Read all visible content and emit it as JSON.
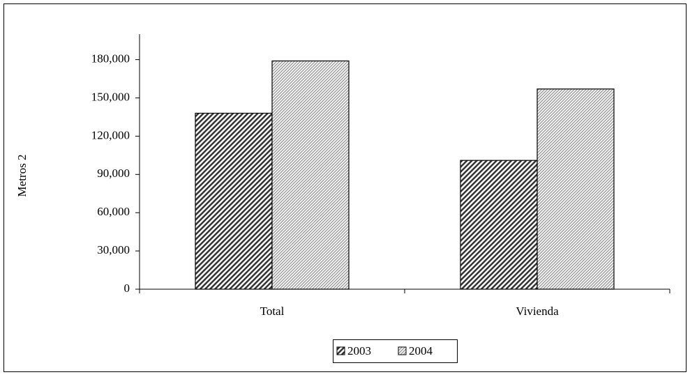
{
  "chart_data": {
    "type": "bar",
    "y_label": "Metros 2",
    "categories": [
      "Total",
      "Vivienda"
    ],
    "series": [
      {
        "name": "2003",
        "color": "#333333",
        "values": [
          138000,
          101000
        ]
      },
      {
        "name": "2004",
        "color": "#9a9a9a",
        "values": [
          179000,
          157000
        ]
      }
    ],
    "ylim": [
      0,
      200000
    ],
    "yticks": [
      0,
      {
        "value": 30000,
        "label": "30,000"
      },
      {
        "value": 60000,
        "label": "60,000"
      },
      {
        "value": 90000,
        "label": "90,000"
      },
      {
        "value": 120000,
        "label": "120,000"
      },
      {
        "value": 150000,
        "label": "150,000"
      },
      {
        "value": 180000,
        "label": "180,000"
      }
    ],
    "legend": "bottom"
  }
}
